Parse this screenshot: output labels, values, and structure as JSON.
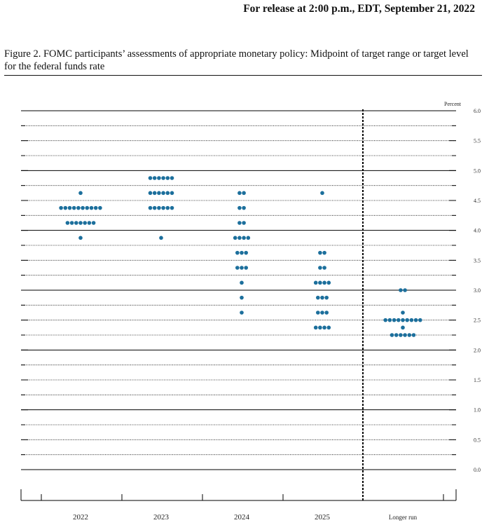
{
  "header": {
    "release": "For release at 2:00 p.m., EDT, September 21, 2022"
  },
  "figure": {
    "title": "Figure 2.  FOMC participants’ assessments of appropriate monetary policy: Midpoint of target range or target level for the federal funds rate"
  },
  "chart_data": {
    "type": "scatter",
    "subtype": "dot-plot",
    "yunit": "Percent",
    "ylim": [
      0,
      6
    ],
    "ytick_step": 0.5,
    "yticks": [
      "0.0",
      "0.5",
      "1.0",
      "1.5",
      "2.0",
      "2.5",
      "3.0",
      "3.5",
      "4.0",
      "4.5",
      "5.0",
      "5.5",
      "6.0"
    ],
    "categories": [
      "2022",
      "2023",
      "2024",
      "2025",
      "Longer run"
    ],
    "colors": {
      "dot": "#1c6f9c",
      "grid": "#000000"
    },
    "separator_after": "2025",
    "distribution": [
      {
        "category": "2022",
        "levels": [
          {
            "rate": 4.625,
            "count": 1
          },
          {
            "rate": 4.375,
            "count": 10
          },
          {
            "rate": 4.125,
            "count": 7
          },
          {
            "rate": 3.875,
            "count": 1
          }
        ]
      },
      {
        "category": "2023",
        "levels": [
          {
            "rate": 4.875,
            "count": 6
          },
          {
            "rate": 4.625,
            "count": 6
          },
          {
            "rate": 4.375,
            "count": 6
          },
          {
            "rate": 3.875,
            "count": 1
          }
        ]
      },
      {
        "category": "2024",
        "levels": [
          {
            "rate": 4.625,
            "count": 2
          },
          {
            "rate": 4.375,
            "count": 2
          },
          {
            "rate": 4.125,
            "count": 2
          },
          {
            "rate": 3.875,
            "count": 4
          },
          {
            "rate": 3.625,
            "count": 3
          },
          {
            "rate": 3.375,
            "count": 3
          },
          {
            "rate": 3.125,
            "count": 1
          },
          {
            "rate": 2.875,
            "count": 1
          },
          {
            "rate": 2.625,
            "count": 1
          }
        ]
      },
      {
        "category": "2025",
        "levels": [
          {
            "rate": 4.625,
            "count": 1
          },
          {
            "rate": 3.625,
            "count": 2
          },
          {
            "rate": 3.375,
            "count": 2
          },
          {
            "rate": 3.125,
            "count": 4
          },
          {
            "rate": 2.875,
            "count": 3
          },
          {
            "rate": 2.625,
            "count": 3
          },
          {
            "rate": 2.375,
            "count": 4
          }
        ]
      },
      {
        "category": "Longer run",
        "levels": [
          {
            "rate": 3.0,
            "count": 2
          },
          {
            "rate": 2.625,
            "count": 1
          },
          {
            "rate": 2.5,
            "count": 9
          },
          {
            "rate": 2.375,
            "count": 1
          },
          {
            "rate": 2.25,
            "count": 6
          }
        ]
      }
    ]
  }
}
